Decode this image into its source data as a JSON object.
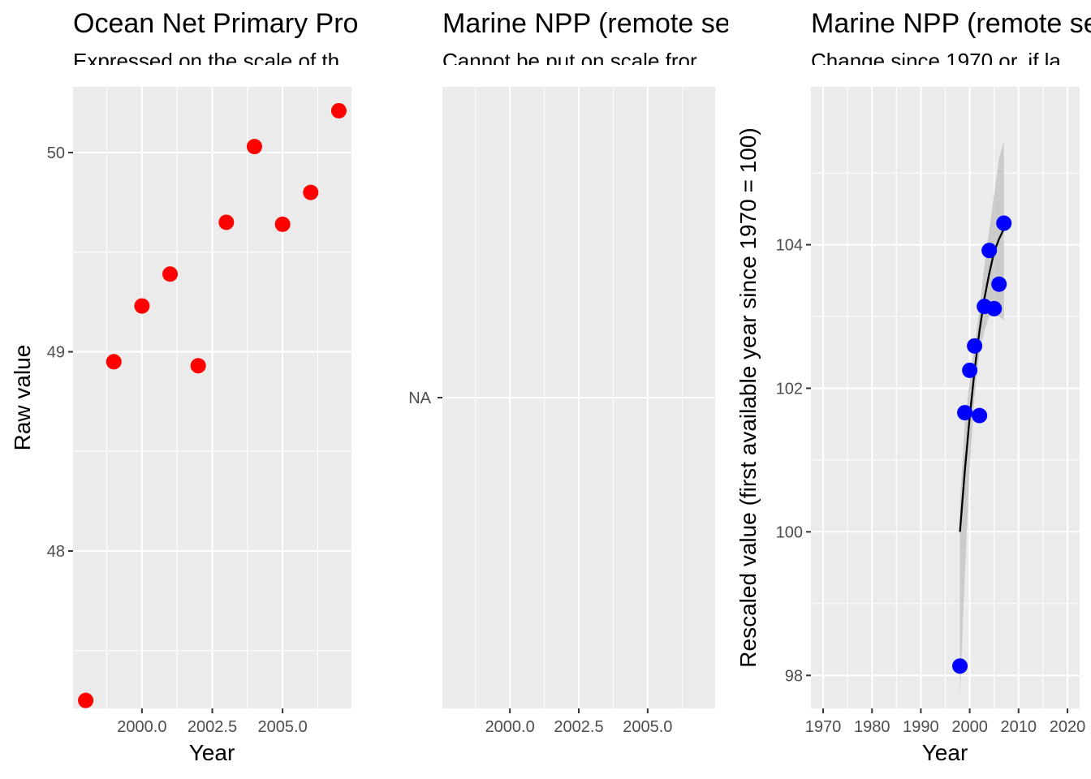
{
  "chart_data": [
    {
      "type": "scatter",
      "title": "Ocean Net Primary Pro",
      "subtitle": "Expressed on the scale of th",
      "xlabel": "Year",
      "ylabel": "Raw value",
      "xlim": [
        1997.55,
        2007.45
      ],
      "ylim": [
        47.21,
        50.33
      ],
      "x_ticks": [
        2000.0,
        2002.5,
        2005.0
      ],
      "x_tick_labels": [
        "2000.0",
        "2002.5",
        "2005.0"
      ],
      "y_ticks": [
        48,
        49,
        50
      ],
      "y_tick_labels": [
        "48",
        "49",
        "50"
      ],
      "grid": true,
      "point_color": "#ff0000",
      "points": [
        {
          "x": 1998,
          "y": 47.25
        },
        {
          "x": 1999,
          "y": 48.95
        },
        {
          "x": 2000,
          "y": 49.23
        },
        {
          "x": 2001,
          "y": 49.39
        },
        {
          "x": 2002,
          "y": 48.93
        },
        {
          "x": 2003,
          "y": 49.65
        },
        {
          "x": 2004,
          "y": 50.03
        },
        {
          "x": 2005,
          "y": 49.64
        },
        {
          "x": 2006,
          "y": 49.8
        },
        {
          "x": 2007,
          "y": 50.21
        }
      ]
    },
    {
      "type": "scatter",
      "title": "Marine NPP (remote se",
      "subtitle": "Cannot be put on scale fror",
      "xlabel": "",
      "ylabel": "",
      "xlim": [
        1997.55,
        2007.45
      ],
      "x_ticks": [
        2000.0,
        2002.5,
        2005.0
      ],
      "x_tick_labels": [
        "2000.0",
        "2002.5",
        "2005.0"
      ],
      "y_tick_labels": [
        "NA"
      ],
      "grid": true,
      "points": []
    },
    {
      "type": "scatter",
      "title": "Marine NPP (remote se",
      "subtitle": "Change since 1970 or, if la",
      "xlabel": "Year",
      "ylabel": "Rescaled value (first available year since 1970 = 100)",
      "xlim": [
        1967.5,
        2022.5
      ],
      "ylim": [
        97.54,
        106.2
      ],
      "x_ticks": [
        1970,
        1980,
        1990,
        2000,
        2010,
        2020
      ],
      "x_tick_labels": [
        "1970",
        "1980",
        "1990",
        "2000",
        "2010",
        "2020"
      ],
      "y_ticks": [
        98,
        100,
        102,
        104
      ],
      "y_tick_labels": [
        "98",
        "100",
        "102",
        "104"
      ],
      "grid": true,
      "point_color": "#0000ff",
      "trend_color": "#000000",
      "band_color": "#c8c8c8",
      "points": [
        {
          "x": 1998,
          "y": 98.13
        },
        {
          "x": 1999,
          "y": 101.66
        },
        {
          "x": 2000,
          "y": 102.25
        },
        {
          "x": 2001,
          "y": 102.59
        },
        {
          "x": 2002,
          "y": 101.62
        },
        {
          "x": 2003,
          "y": 103.14
        },
        {
          "x": 2004,
          "y": 103.92
        },
        {
          "x": 2005,
          "y": 103.11
        },
        {
          "x": 2006,
          "y": 103.45
        },
        {
          "x": 2007,
          "y": 104.3
        }
      ],
      "trend": [
        {
          "x": 1998,
          "y": 100.0
        },
        {
          "x": 1999,
          "y": 100.85
        },
        {
          "x": 2000,
          "y": 101.6
        },
        {
          "x": 2001,
          "y": 102.25
        },
        {
          "x": 2002,
          "y": 102.8
        },
        {
          "x": 2003,
          "y": 103.25
        },
        {
          "x": 2004,
          "y": 103.6
        },
        {
          "x": 2005,
          "y": 103.9
        },
        {
          "x": 2006,
          "y": 104.08
        },
        {
          "x": 2007,
          "y": 104.22
        }
      ],
      "band": [
        {
          "x": 1998,
          "lo": 97.7,
          "hi": 100.4
        },
        {
          "x": 1999,
          "lo": 99.4,
          "hi": 101.5
        },
        {
          "x": 2000,
          "lo": 100.9,
          "hi": 102.1
        },
        {
          "x": 2001,
          "lo": 101.9,
          "hi": 102.6
        },
        {
          "x": 2002,
          "lo": 102.5,
          "hi": 103.1
        },
        {
          "x": 2003,
          "lo": 102.8,
          "hi": 103.7
        },
        {
          "x": 2004,
          "lo": 103.0,
          "hi": 104.2
        },
        {
          "x": 2005,
          "lo": 103.0,
          "hi": 104.7
        },
        {
          "x": 2006,
          "lo": 103.0,
          "hi": 105.2
        },
        {
          "x": 2007,
          "lo": 102.95,
          "hi": 105.45
        }
      ]
    }
  ]
}
